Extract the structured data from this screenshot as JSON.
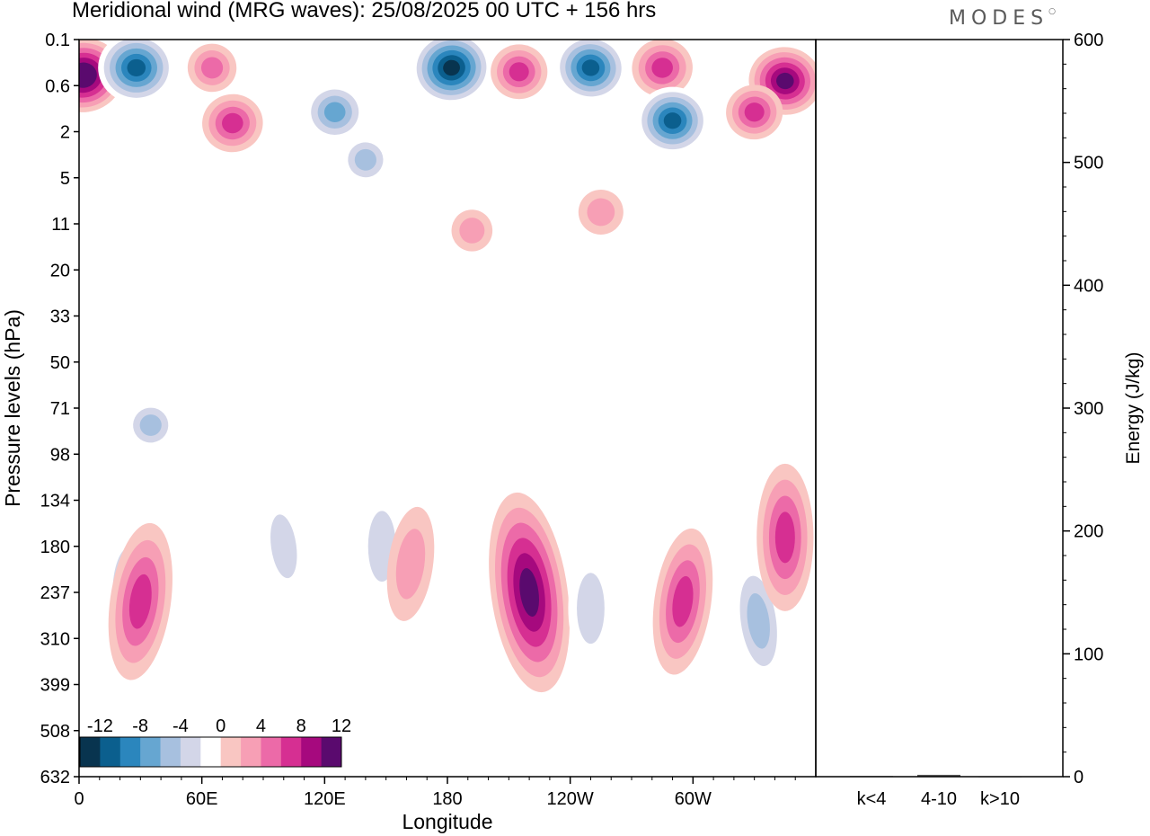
{
  "title": "Meridional wind (MRG waves):  25/08/2025  00 UTC  + 156 hrs",
  "brand": "MODES",
  "chart_data": [
    {
      "type": "heatmap",
      "title": "Meridional wind (MRG waves):  25/08/2025  00 UTC  + 156 hrs",
      "xlabel": "Longitude",
      "ylabel": "Pressure levels (hPa)",
      "x_ticks": [
        "0",
        "60E",
        "120E",
        "180",
        "120W",
        "60W"
      ],
      "x_tick_positions_deg": [
        0,
        60,
        120,
        180,
        240,
        300
      ],
      "xlim": [
        0,
        360
      ],
      "y_ticks": [
        "0.1",
        "0.6",
        "2",
        "5",
        "11",
        "20",
        "33",
        "50",
        "71",
        "98",
        "134",
        "180",
        "237",
        "310",
        "399",
        "508",
        "632"
      ],
      "colorbar": {
        "levels": [
          -14,
          -12,
          -10,
          -8,
          -6,
          -4,
          -2,
          2,
          4,
          6,
          8,
          10,
          12,
          14
        ],
        "tick_labels": [
          "-12",
          "-8",
          "-4",
          "0",
          "4",
          "8",
          "12"
        ],
        "colors": [
          "#08344f",
          "#0b5f8e",
          "#2b86bd",
          "#66a6d1",
          "#a7c0df",
          "#d3d6e8",
          "#ffffff",
          "#f9c6c2",
          "#f79fb5",
          "#ec6aa8",
          "#d62f92",
          "#a6097e",
          "#5a0a6e"
        ]
      },
      "features": [
        {
          "lon": 2,
          "level": 0.4,
          "value": 14
        },
        {
          "lon": 28,
          "level": 0.3,
          "value": -13
        },
        {
          "lon": 65,
          "level": 0.3,
          "value": 6
        },
        {
          "lon": 75,
          "level": 1.6,
          "value": 9
        },
        {
          "lon": 125,
          "level": 1.2,
          "value": -9
        },
        {
          "lon": 140,
          "level": 3.5,
          "value": -6
        },
        {
          "lon": 182,
          "level": 0.3,
          "value": -14
        },
        {
          "lon": 215,
          "level": 0.35,
          "value": 8
        },
        {
          "lon": 250,
          "level": 0.3,
          "value": -12
        },
        {
          "lon": 285,
          "level": 0.3,
          "value": 9
        },
        {
          "lon": 290,
          "level": 1.5,
          "value": -12
        },
        {
          "lon": 345,
          "level": 0.5,
          "value": 12
        },
        {
          "lon": 330,
          "level": 1.2,
          "value": 8
        },
        {
          "lon": 192,
          "level": 12,
          "value": 4
        },
        {
          "lon": 255,
          "level": 9,
          "value": 5
        },
        {
          "lon": 35,
          "level": 80,
          "value": -6
        },
        {
          "lon": 25,
          "level": 237,
          "value": -6
        },
        {
          "lon": 30,
          "level": 250,
          "value": 9
        },
        {
          "lon": 100,
          "level": 180,
          "value": -4
        },
        {
          "lon": 148,
          "level": 180,
          "value": -5
        },
        {
          "lon": 162,
          "level": 200,
          "value": 5
        },
        {
          "lon": 220,
          "level": 237,
          "value": 13
        },
        {
          "lon": 250,
          "level": 260,
          "value": -5
        },
        {
          "lon": 295,
          "level": 250,
          "value": 8
        },
        {
          "lon": 332,
          "level": 280,
          "value": -6
        },
        {
          "lon": 345,
          "level": 170,
          "value": 8
        }
      ]
    },
    {
      "type": "bar",
      "categories": [
        "k<4",
        "4-10",
        "k>10"
      ],
      "values": [
        0.5,
        1.5,
        0.3
      ],
      "ylabel": "Energy (J/kg)",
      "ylim": [
        0,
        600
      ],
      "y_ticks": [
        0,
        100,
        200,
        300,
        400,
        500,
        600
      ]
    }
  ]
}
